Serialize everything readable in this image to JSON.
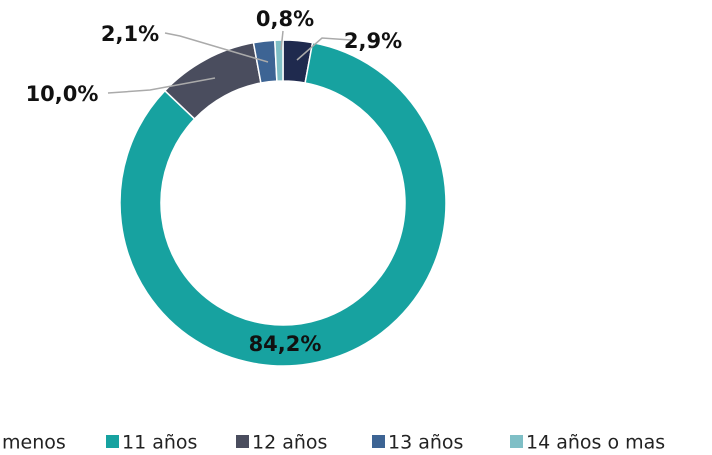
{
  "chart_data": {
    "type": "pie",
    "categories": [
      "menos",
      "11 años",
      "12 años",
      "13 años",
      "14 años o mas"
    ],
    "values": [
      2.9,
      84.2,
      10.0,
      2.1,
      0.8
    ],
    "value_labels": [
      "2,9%",
      "84,2%",
      "10,0%",
      "2,1%",
      "0,8%"
    ],
    "colors": [
      "#1f2a4e",
      "#17a2a0",
      "#4a4d5e",
      "#3d6494",
      "#7fbfc6"
    ],
    "donut": true,
    "legend": "bottom"
  }
}
